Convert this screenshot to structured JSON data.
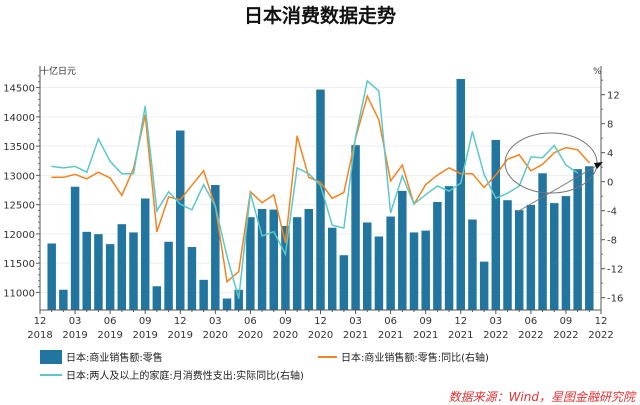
{
  "chart_data": {
    "type": "bar+line",
    "title": "日本消费数据走势",
    "left_unit": "十亿日元",
    "right_unit": "%",
    "left_ylim": [
      10700,
      14800
    ],
    "right_ylim": [
      -17.7,
      15.4
    ],
    "left_ticks": [
      11000,
      11500,
      12000,
      12500,
      13000,
      13500,
      14000,
      14500
    ],
    "right_ticks": [
      -16,
      -12,
      -8,
      -4,
      0,
      4,
      8,
      12
    ],
    "grid": true,
    "legend_position": "bottom",
    "x_tick_labels": [
      [
        "12",
        "2018"
      ],
      [
        "03",
        "2019"
      ],
      [
        "06",
        "2019"
      ],
      [
        "09",
        "2019"
      ],
      [
        "12",
        "2019"
      ],
      [
        "03",
        "2020"
      ],
      [
        "06",
        "2020"
      ],
      [
        "09",
        "2020"
      ],
      [
        "12",
        "2020"
      ],
      [
        "03",
        "2021"
      ],
      [
        "06",
        "2021"
      ],
      [
        "09",
        "2021"
      ],
      [
        "12",
        "2021"
      ],
      [
        "03",
        "2022"
      ],
      [
        "06",
        "2022"
      ],
      [
        "09",
        "2022"
      ],
      [
        "12",
        "2022"
      ]
    ],
    "months": [
      "2019-01",
      "2019-02",
      "2019-03",
      "2019-04",
      "2019-05",
      "2019-06",
      "2019-07",
      "2019-08",
      "2019-09",
      "2019-10",
      "2019-11",
      "2019-12",
      "2020-01",
      "2020-02",
      "2020-03",
      "2020-04",
      "2020-05",
      "2020-06",
      "2020-07",
      "2020-08",
      "2020-09",
      "2020-10",
      "2020-11",
      "2020-12",
      "2021-01",
      "2021-02",
      "2021-03",
      "2021-04",
      "2021-05",
      "2021-06",
      "2021-07",
      "2021-08",
      "2021-09",
      "2021-10",
      "2021-11",
      "2021-12",
      "2022-01",
      "2022-02",
      "2022-03",
      "2022-04",
      "2022-05",
      "2022-06",
      "2022-07",
      "2022-08",
      "2022-09",
      "2022-10",
      "2022-11"
    ],
    "series": [
      {
        "name": "日本:商业销售额:零售",
        "type": "bar",
        "axis": "left",
        "color": "#21759f",
        "values": [
          11840,
          11050,
          12810,
          12040,
          12000,
          11830,
          12170,
          12030,
          12610,
          11110,
          11870,
          13770,
          11780,
          11220,
          12840,
          10900,
          11050,
          12290,
          12430,
          12420,
          12140,
          12290,
          12430,
          14470,
          12110,
          11640,
          13520,
          12200,
          11960,
          12300,
          12740,
          12030,
          12060,
          12550,
          12820,
          14650,
          12250,
          11530,
          13610,
          12580,
          12410,
          12500,
          13040,
          12530,
          12650,
          13110,
          13160
        ]
      },
      {
        "name": "日本:商业销售额:零售:同比(右轴)",
        "type": "line",
        "axis": "right",
        "color": "#f58220",
        "values": [
          0.6,
          0.6,
          1.0,
          0.4,
          1.3,
          0.5,
          -1.9,
          1.8,
          9.2,
          -6.9,
          -2.1,
          -2.5,
          -0.5,
          1.5,
          -3.4,
          -13.8,
          -12.4,
          -1.4,
          -2.9,
          -1.8,
          -8.4,
          6.3,
          0.6,
          -0.1,
          -2.3,
          -1.5,
          6.0,
          11.8,
          8.5,
          0.1,
          2.3,
          -3.1,
          -0.4,
          0.9,
          1.9,
          1.1,
          1.1,
          -0.8,
          0.9,
          3.1,
          3.7,
          1.5,
          2.4,
          4.0,
          4.7,
          4.4,
          2.6
        ]
      },
      {
        "name": "日本:两人及以上的家庭:月消费性支出:实际同比(右轴)",
        "type": "line",
        "axis": "right",
        "color": "#5cc8c8",
        "values": [
          2.1,
          1.9,
          2.1,
          1.3,
          5.9,
          2.8,
          1.1,
          1.1,
          10.4,
          -4.0,
          -1.4,
          -3.1,
          -3.9,
          -0.4,
          -3.4,
          -10.3,
          -16.1,
          -1.6,
          -7.5,
          -6.9,
          -10.0,
          1.9,
          1.1,
          -0.5,
          -6.0,
          -6.4,
          6.2,
          13.9,
          12.5,
          -4.3,
          0.8,
          -3.1,
          -1.8,
          -0.6,
          -1.3,
          -0.2,
          6.9,
          1.0,
          -2.3,
          -1.6,
          -0.6,
          3.4,
          3.3,
          5.0,
          2.3,
          1.2,
          null
        ]
      }
    ],
    "source": "数据来源：Wind，星图金融研究院"
  }
}
